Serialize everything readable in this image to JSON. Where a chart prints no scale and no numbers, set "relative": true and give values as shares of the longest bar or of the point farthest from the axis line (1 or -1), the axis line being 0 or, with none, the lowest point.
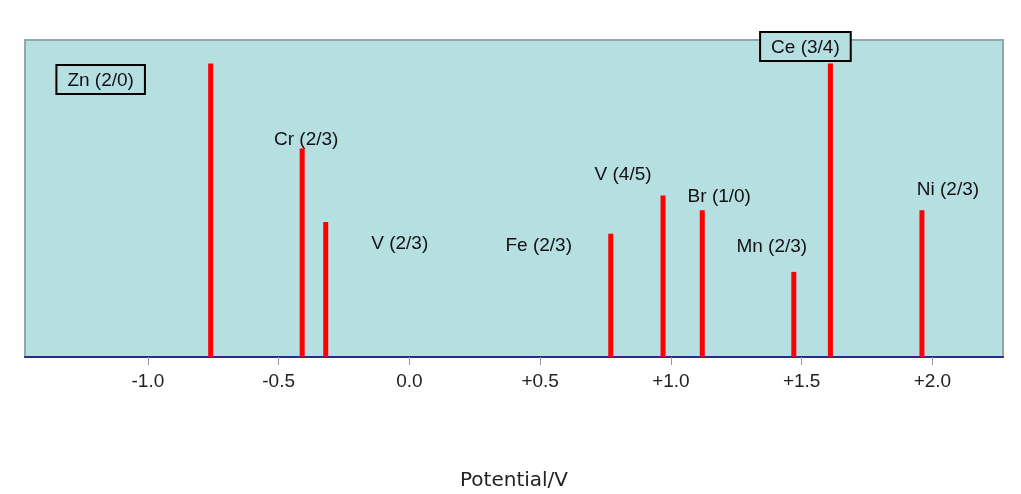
{
  "chart_data": {
    "type": "bar",
    "relative": true,
    "xlabel": "Potential/V",
    "x": [
      -0.76,
      -0.41,
      -0.32,
      0.77,
      0.97,
      1.12,
      1.47,
      1.61,
      1.96
    ],
    "values": [
      1,
      0.71,
      0.46,
      0.42,
      0.55,
      0.5,
      0.29,
      1,
      0.5
    ],
    "color": "#ff0000",
    "xlim": [
      -1.47,
      2.27
    ],
    "xticks": [
      {
        "value": -1,
        "label": "-1.0"
      },
      {
        "value": -0.5,
        "label": "-0.5"
      },
      {
        "value": 0,
        "label": "0.0"
      },
      {
        "value": 0.5,
        "label": "+0.5"
      },
      {
        "value": 1,
        "label": "+1.0"
      },
      {
        "value": 1.5,
        "label": "+1.5"
      },
      {
        "value": 2,
        "label": "+2.0"
      }
    ],
    "grid": false,
    "annotations": [
      "Zn (2/0)",
      "Cr (2/3)",
      "V (2/3)",
      "Fe (2/3)",
      "V (4/5)",
      "Br (1/0)",
      "Mn (2/3)",
      "Ce (3/4)",
      "Ni (2/3)"
    ]
  }
}
